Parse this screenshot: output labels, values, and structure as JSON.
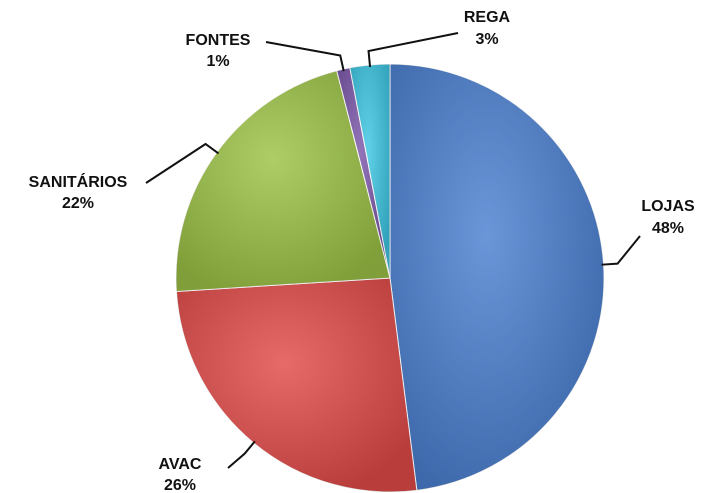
{
  "chart_data": {
    "type": "pie",
    "categories": [
      "LOJAS",
      "AVAC",
      "SANITÁRIOS",
      "FONTES",
      "REGA"
    ],
    "values": [
      48,
      26,
      22,
      1,
      3
    ],
    "value_labels": [
      "48%",
      "26%",
      "22%",
      "1%",
      "3%"
    ],
    "colors": [
      "#4a7fd0",
      "#e04a48",
      "#9cc246",
      "#7a55a8",
      "#3cc6e2"
    ]
  }
}
